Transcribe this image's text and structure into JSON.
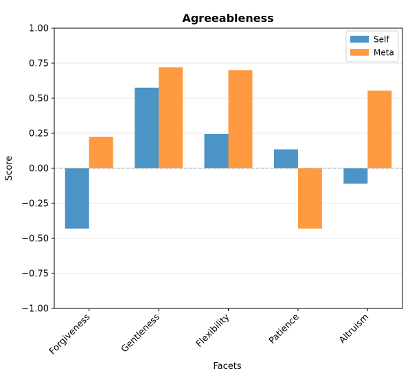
{
  "chart_data": {
    "type": "bar",
    "title": "Agreeableness",
    "xlabel": "Facets",
    "ylabel": "Score",
    "categories": [
      "Forgiveness",
      "Gentleness",
      "Flexibility",
      "Patience",
      "Altruism"
    ],
    "series": [
      {
        "name": "Self",
        "color": "#4c93c6",
        "values": [
          -0.43,
          0.575,
          0.245,
          0.135,
          -0.11
        ]
      },
      {
        "name": "Meta",
        "color": "#ff9a40",
        "values": [
          0.225,
          0.72,
          0.7,
          -0.43,
          0.555
        ]
      }
    ],
    "ylim": [
      -1.0,
      1.0
    ],
    "yticks": [
      -1.0,
      -0.75,
      -0.5,
      -0.25,
      0.0,
      0.25,
      0.5,
      0.75,
      1.0
    ],
    "ytick_labels": [
      "−1.00",
      "−0.75",
      "−0.50",
      "−0.25",
      "0.00",
      "0.25",
      "0.50",
      "0.75",
      "1.00"
    ],
    "grid": "horizontal",
    "zero_line": "dashed",
    "legend_position": "top-right"
  }
}
